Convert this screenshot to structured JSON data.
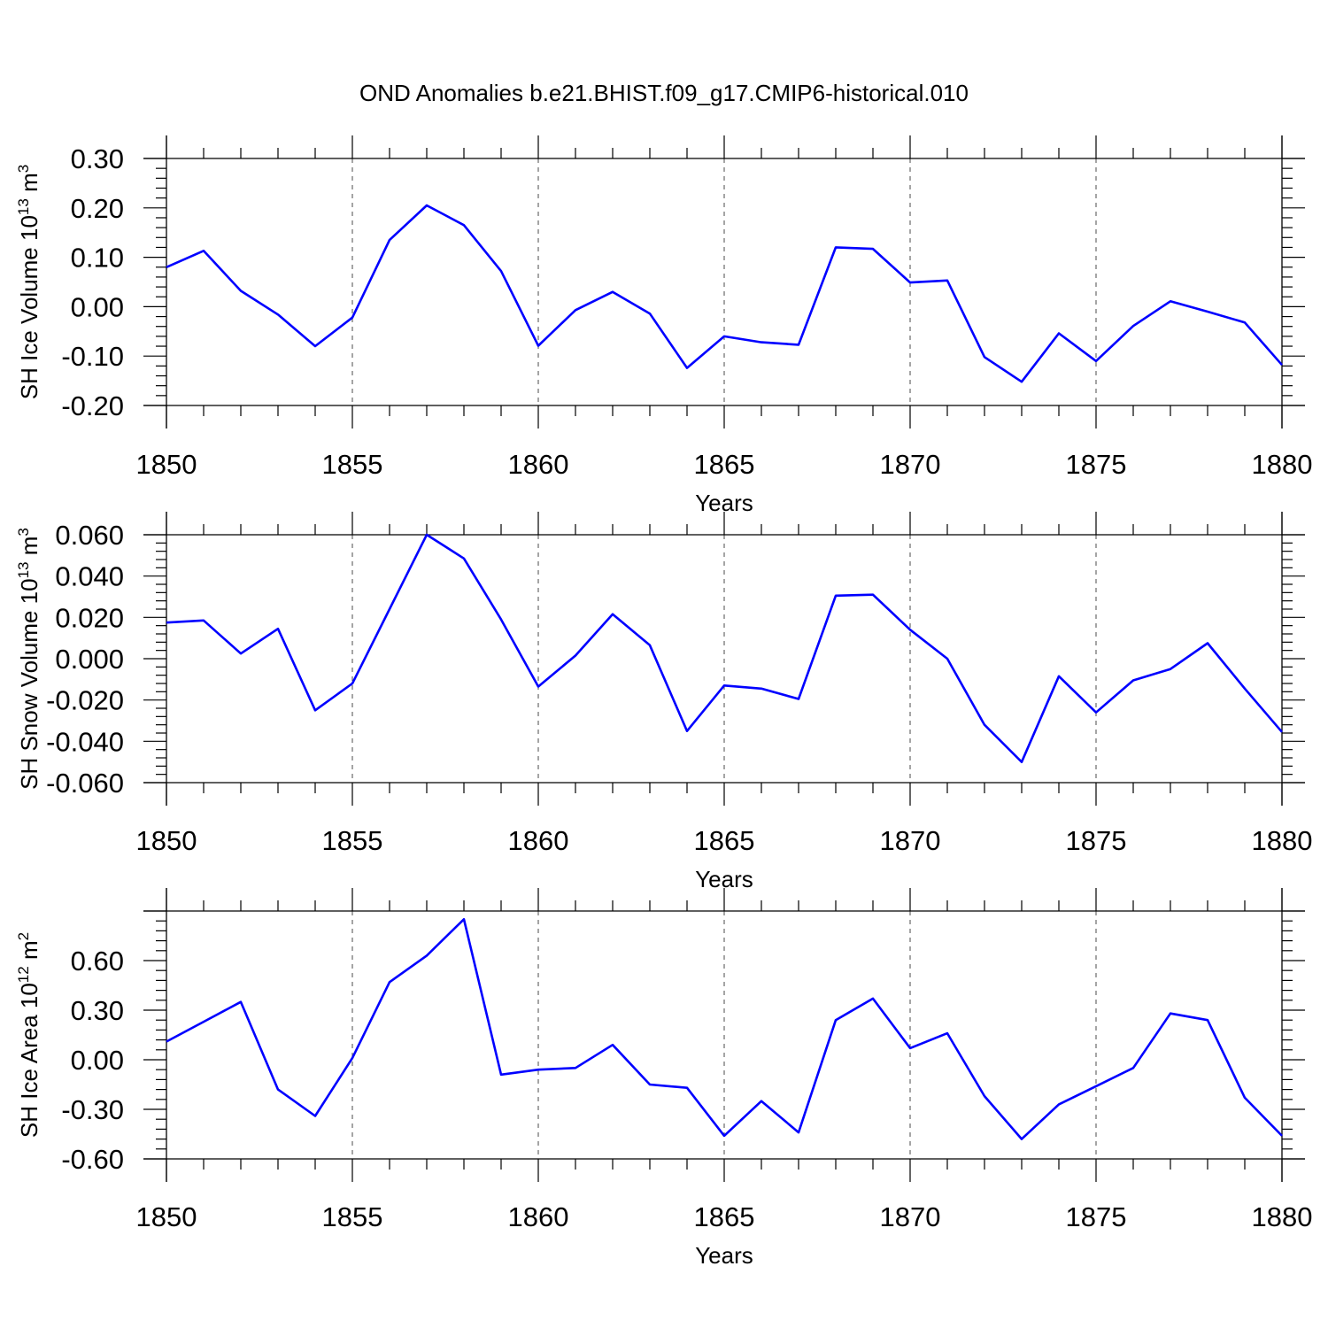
{
  "title": "OND Anomalies b.e21.BHIST.f09_g17.CMIP6-historical.010",
  "chart_data": [
    {
      "type": "line",
      "ylabel": "SH Ice Volume 10",
      "ylabel_exp": "13",
      "ylabel_unit": " m",
      "ylabel_unit_exp": "3",
      "xlabel": "Years",
      "xlim": [
        1850,
        1880
      ],
      "ylim": [
        -0.2,
        0.3
      ],
      "xticks": [
        "1850",
        "1855",
        "1860",
        "1865",
        "1870",
        "1875",
        "1880"
      ],
      "yticks": [
        "0.30",
        "0.20",
        "0.10",
        "0.00",
        "-0.10",
        "-0.20"
      ],
      "ytick_values": [
        0.3,
        0.2,
        0.1,
        0.0,
        -0.1,
        -0.2
      ],
      "grid": "dashed vertical at major x ticks",
      "color": "#0000ff",
      "x": [
        1850,
        1851,
        1852,
        1853,
        1854,
        1855,
        1856,
        1857,
        1858,
        1859,
        1860,
        1861,
        1862,
        1863,
        1864,
        1865,
        1866,
        1867,
        1868,
        1869,
        1870,
        1871,
        1872,
        1873,
        1874,
        1875,
        1876,
        1877,
        1878,
        1879,
        1880
      ],
      "values": [
        0.08,
        0.113,
        0.032,
        -0.016,
        -0.08,
        -0.022,
        0.135,
        0.205,
        0.165,
        0.072,
        -0.079,
        -0.007,
        0.03,
        -0.014,
        -0.124,
        -0.06,
        -0.072,
        -0.077,
        0.12,
        0.117,
        0.049,
        0.053,
        -0.102,
        -0.152,
        -0.054,
        -0.11,
        -0.039,
        0.011,
        -0.01,
        -0.032,
        -0.118
      ]
    },
    {
      "type": "line",
      "ylabel": "SH Snow Volume 10",
      "ylabel_exp": "13",
      "ylabel_unit": " m",
      "ylabel_unit_exp": "3",
      "xlabel": "Years",
      "xlim": [
        1850,
        1880
      ],
      "ylim": [
        -0.06,
        0.06
      ],
      "xticks": [
        "1850",
        "1855",
        "1860",
        "1865",
        "1870",
        "1875",
        "1880"
      ],
      "yticks": [
        "0.060",
        "0.040",
        "0.020",
        "0.000",
        "-0.020",
        "-0.040",
        "-0.060"
      ],
      "ytick_values": [
        0.06,
        0.04,
        0.02,
        0.0,
        -0.02,
        -0.04,
        -0.06
      ],
      "grid": "dashed vertical at major x ticks",
      "color": "#0000ff",
      "x": [
        1850,
        1851,
        1852,
        1853,
        1854,
        1855,
        1856,
        1857,
        1858,
        1859,
        1860,
        1861,
        1862,
        1863,
        1864,
        1865,
        1866,
        1867,
        1868,
        1869,
        1870,
        1871,
        1872,
        1873,
        1874,
        1875,
        1876,
        1877,
        1878,
        1879,
        1880
      ],
      "values": [
        0.0175,
        0.0185,
        0.0025,
        0.0145,
        -0.025,
        -0.012,
        0.024,
        0.06,
        0.0485,
        0.019,
        -0.0135,
        0.0015,
        0.0215,
        0.0065,
        -0.035,
        -0.013,
        -0.0145,
        -0.0195,
        0.0305,
        0.031,
        0.014,
        0.0,
        -0.032,
        -0.05,
        -0.0085,
        -0.026,
        -0.0105,
        -0.005,
        0.0075,
        -0.0145,
        -0.0355
      ]
    },
    {
      "type": "line",
      "ylabel": "SH Ice Area 10",
      "ylabel_exp": "12",
      "ylabel_unit": " m",
      "ylabel_unit_exp": "2",
      "xlabel": "Years",
      "xlim": [
        1850,
        1880
      ],
      "ylim": [
        -0.6,
        0.9
      ],
      "xticks": [
        "1850",
        "1855",
        "1860",
        "1865",
        "1870",
        "1875",
        "1880"
      ],
      "yticks": [
        "0.60",
        "0.30",
        "0.00",
        "-0.30",
        "-0.60"
      ],
      "ytick_values": [
        0.6,
        0.3,
        0.0,
        -0.3,
        -0.6
      ],
      "grid": "dashed vertical at major x ticks",
      "color": "#0000ff",
      "x": [
        1850,
        1851,
        1852,
        1853,
        1854,
        1855,
        1856,
        1857,
        1858,
        1859,
        1860,
        1861,
        1862,
        1863,
        1864,
        1865,
        1866,
        1867,
        1868,
        1869,
        1870,
        1871,
        1872,
        1873,
        1874,
        1875,
        1876,
        1877,
        1878,
        1879,
        1880
      ],
      "values": [
        0.11,
        0.23,
        0.35,
        -0.18,
        -0.34,
        0.01,
        0.47,
        0.63,
        0.85,
        -0.09,
        -0.06,
        -0.05,
        0.09,
        -0.15,
        -0.17,
        -0.46,
        -0.25,
        -0.44,
        0.24,
        0.37,
        0.07,
        0.16,
        -0.22,
        -0.48,
        -0.27,
        -0.16,
        -0.05,
        0.28,
        0.24,
        -0.23,
        -0.46
      ]
    }
  ]
}
